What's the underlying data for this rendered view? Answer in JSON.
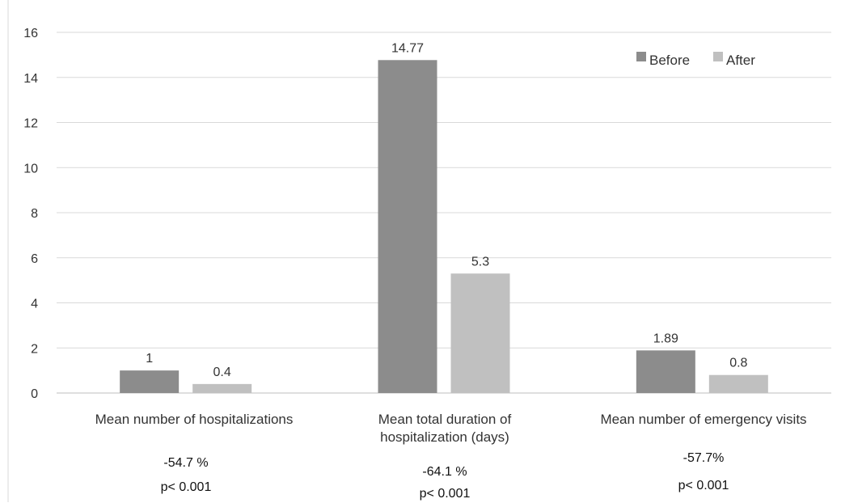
{
  "chart_data": {
    "type": "bar",
    "categories": [
      "Mean number of hospitalizations",
      "Mean total duration of hospitalization (days)",
      "Mean number of emergency visits"
    ],
    "series": [
      {
        "name": "Before",
        "values": [
          1,
          14.77,
          1.89
        ],
        "labels": [
          "1",
          "14.77",
          "1.89"
        ]
      },
      {
        "name": "After",
        "values": [
          0.4,
          5.3,
          0.8
        ],
        "labels": [
          "0.4",
          "5.3",
          "0.8"
        ]
      }
    ],
    "ylim": [
      0,
      16
    ],
    "yticks": [
      0,
      2,
      4,
      6,
      8,
      10,
      12,
      14,
      16
    ],
    "grid": true,
    "legend": "top-right",
    "colors": {
      "Before": "#8c8c8c",
      "After": "#c0c0c0",
      "grid": "#d9d9d9"
    },
    "annotations": [
      {
        "change": "-54.7 %",
        "p": "p< 0.001"
      },
      {
        "change": "-64.1 %",
        "p": "p< 0.001"
      },
      {
        "change": "-57.7%",
        "p": "p< 0.001"
      }
    ]
  },
  "labels": {
    "cat0": "Mean number of hospitalizations",
    "cat1_line1": "Mean total duration of",
    "cat1_line2": "hospitalization (days)",
    "cat2": "Mean number of emergency visits"
  }
}
